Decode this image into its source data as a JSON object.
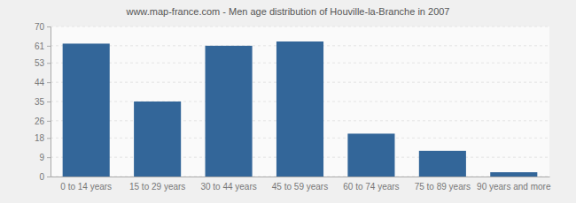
{
  "chart_data": {
    "type": "bar",
    "title": "www.map-france.com - Men age distribution of Houville-la-Branche in 2007",
    "categories": [
      "0 to 14 years",
      "15 to 29 years",
      "30 to 44 years",
      "45 to 59 years",
      "60 to 74 years",
      "75 to 89 years",
      "90 years and more"
    ],
    "values": [
      62,
      35,
      61,
      63,
      20,
      12,
      2
    ],
    "color": "#336699",
    "ylim": [
      0,
      70
    ],
    "yticks": [
      0,
      9,
      18,
      26,
      35,
      44,
      53,
      61,
      70
    ],
    "grid": true
  }
}
